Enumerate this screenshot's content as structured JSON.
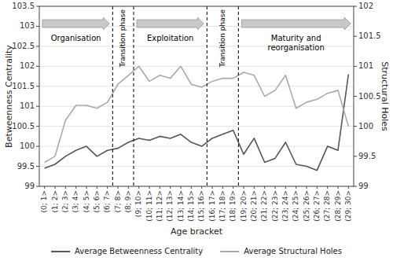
{
  "chart_data": {
    "type": "line",
    "categories": [
      "(0; 1>",
      "(1; 2>",
      "(2; 3>",
      "(3; 4>",
      "(4; 5>",
      "(5; 6>",
      "(6; 7>",
      "(7; 8>",
      "(8; 9>",
      "(9; 10>",
      "(10; 11>",
      "(11; 12>",
      "(12; 13>",
      "(13; 14>",
      "(14; 15>",
      "(15; 16>",
      "(16; 17>",
      "(17; 18>",
      "(18; 19>",
      "(19; 20>",
      "(20; 21>",
      "(21; 22>",
      "(22; 23>",
      "(23; 24>",
      "(24; 25>",
      "(25; 26>",
      "(26; 27>",
      "(27; 28>",
      "(28; 29>",
      "(29; 30>"
    ],
    "series": [
      {
        "name": "Average Betweenness Centrality",
        "color": "#555555",
        "values": [
          99.45,
          99.55,
          99.75,
          99.9,
          100.0,
          99.75,
          99.9,
          99.95,
          100.1,
          100.2,
          100.15,
          100.25,
          100.2,
          100.3,
          100.1,
          100.0,
          100.2,
          100.3,
          100.4,
          99.8,
          100.2,
          99.6,
          99.7,
          100.1,
          99.55,
          99.5,
          99.4,
          100.0,
          99.9,
          101.8
        ]
      },
      {
        "name": "Average Structural Holes",
        "color": "#aaaaaa",
        "axis": "y2",
        "values": [
          99.4,
          99.5,
          100.1,
          100.35,
          100.35,
          100.3,
          100.4,
          100.7,
          100.85,
          101.0,
          100.75,
          100.85,
          100.8,
          101.0,
          100.7,
          100.65,
          100.75,
          100.8,
          100.8,
          100.9,
          100.85,
          100.5,
          100.6,
          100.85,
          100.3,
          100.4,
          100.45,
          100.55,
          100.6,
          100.0
        ]
      }
    ],
    "x_label": "Age bracket",
    "y_label": "Betweenness Centrality",
    "y2_label": "Structural Holes",
    "ylim": [
      99,
      103.5
    ],
    "yticks": [
      99,
      99.5,
      100,
      100.5,
      101,
      101.5,
      102,
      102.5,
      103,
      103.5
    ],
    "y2lim": [
      99,
      102
    ],
    "y2ticks": [
      99,
      99.5,
      100,
      100.5,
      101,
      101.5,
      102
    ],
    "grid": true,
    "legend": "bottom",
    "transitions": [
      {
        "text": "Transition phase",
        "x": [
          6.5,
          8.5
        ]
      },
      {
        "text": "Transition phase",
        "x": [
          15.5,
          18.5
        ]
      }
    ],
    "phases": [
      {
        "text": "Organisation"
      },
      {
        "text": "Exploitation"
      },
      {
        "text": "Maturity and\nreorganisation"
      }
    ]
  }
}
